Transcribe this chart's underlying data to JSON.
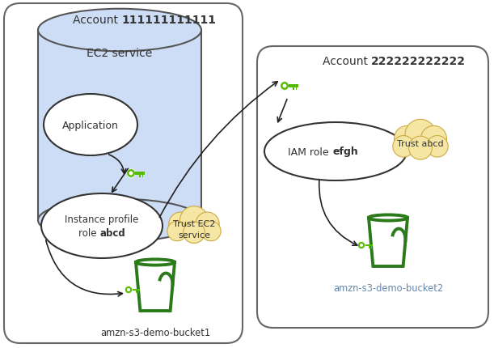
{
  "account1_label": "Account ",
  "account1_bold": "111111111111",
  "account2_label": "Account ",
  "account2_bold": "222222222222",
  "ec2_service_label": "EC2 service",
  "application_label": "Application",
  "instance_profile_line1": "Instance profile",
  "instance_profile_line2": "role ",
  "instance_profile_bold": "abcd",
  "trust_ec2_line1": "Trust EC2",
  "trust_ec2_line2": "service",
  "iam_role_prefix": "IAM role ",
  "iam_role_bold": "efgh",
  "trust_abcd_label": "Trust abcd",
  "bucket1_label": "amzn-s3-demo-bucket1",
  "bucket2_label": "amzn-s3-demo-bucket2",
  "bg_color": "#ffffff",
  "box_edge_color": "#666666",
  "cylinder_face": "#ccddf5",
  "cylinder_edge": "#555555",
  "ellipse_face": "#ffffff",
  "ellipse_edge": "#333333",
  "cloud_face": "#f5e6a3",
  "cloud_edge": "#ccaa44",
  "bucket_color": "#2a7a1a",
  "key_color": "#55bb00",
  "arrow_color": "#222222",
  "text_color": "#333333",
  "bucket2_label_color": "#6688aa"
}
